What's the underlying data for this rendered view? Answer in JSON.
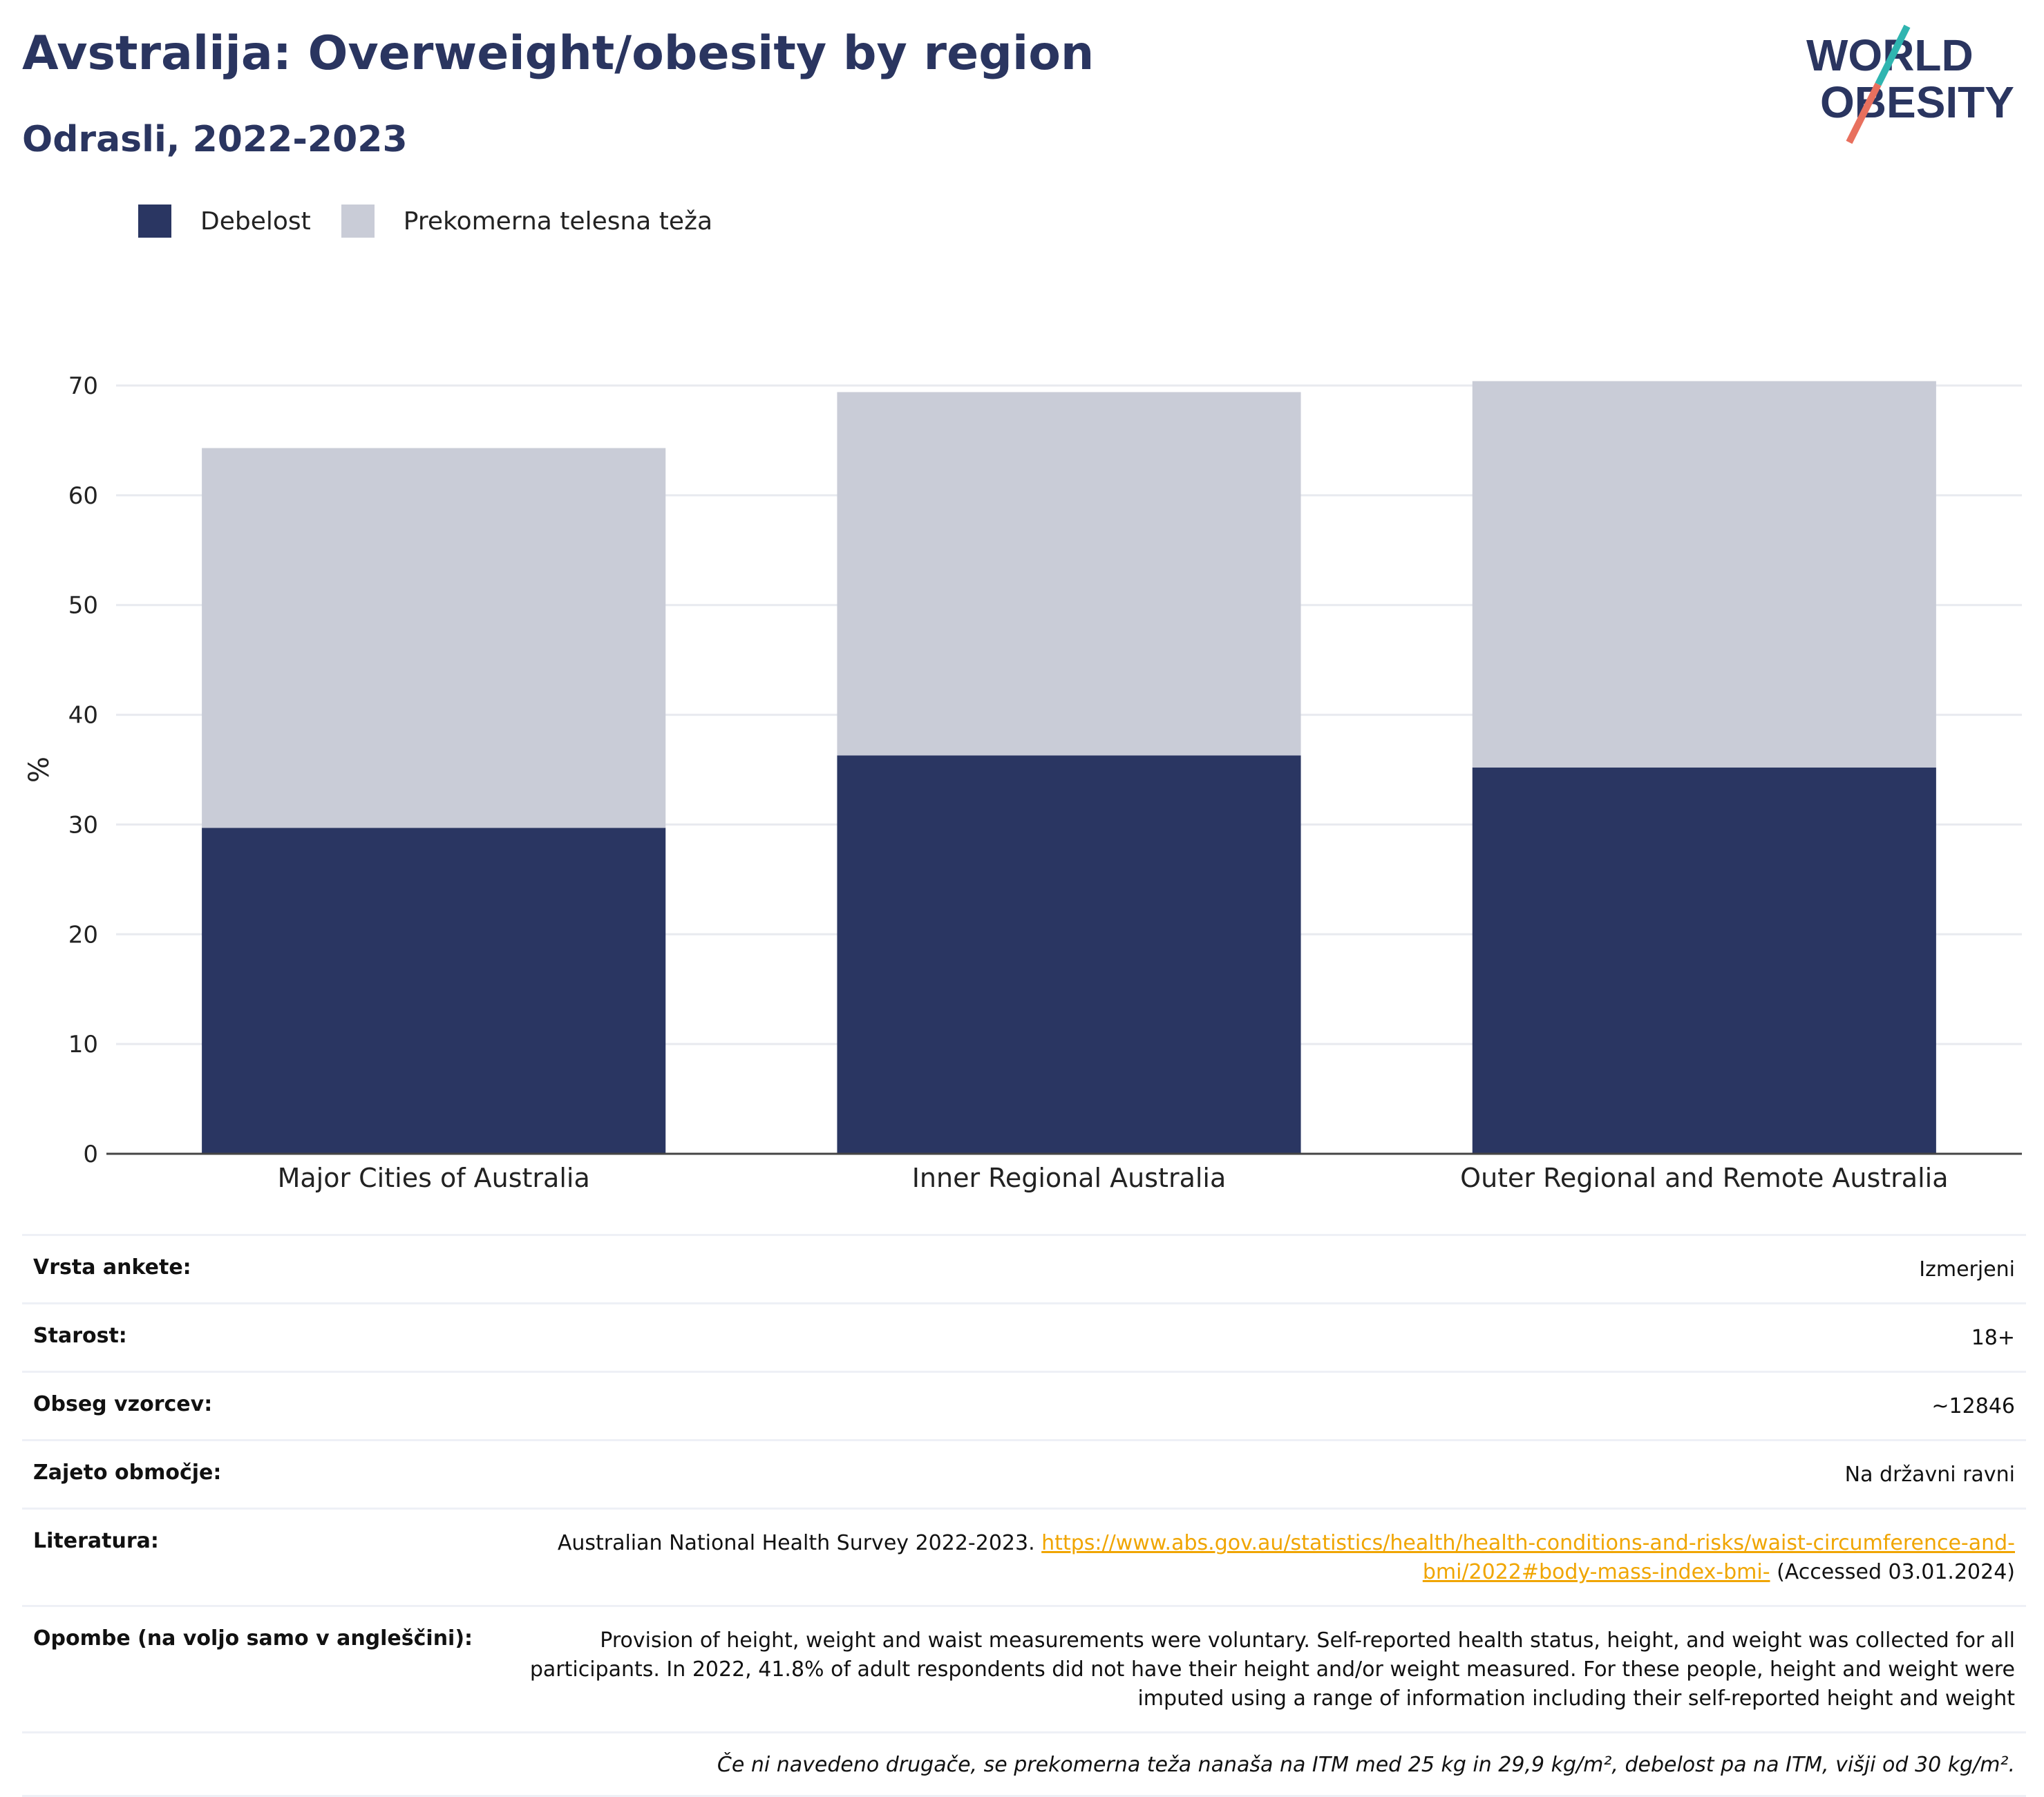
{
  "header": {
    "title": "Avstralija: Overweight/obesity by region",
    "subtitle": "Odrasli, 2022-2023"
  },
  "logo": {
    "line1": "WORLD",
    "line2": "OBESITY"
  },
  "colors": {
    "obesity": "#2a3662",
    "overweight": "#c9ccd7",
    "title": "#2a3560",
    "link": "#f0a500"
  },
  "legend": {
    "items": [
      {
        "label": "Debelost",
        "color": "#2a3662"
      },
      {
        "label": "Prekomerna telesna teža",
        "color": "#c9ccd7"
      }
    ],
    "placement": "top-left"
  },
  "chart_data": {
    "type": "bar",
    "stacked": true,
    "categories": [
      "Major Cities of Australia",
      "Inner Regional Australia",
      "Outer Regional and Remote Australia"
    ],
    "series": [
      {
        "name": "Debelost",
        "values": [
          29.7,
          36.3,
          35.2
        ]
      },
      {
        "name": "Prekomerna telesna teža",
        "values": [
          34.6,
          33.1,
          35.2
        ]
      }
    ],
    "ylabel": "%",
    "ylim": [
      0,
      70
    ],
    "yticks": [
      "0",
      "10",
      "20",
      "30",
      "40",
      "50",
      "60",
      "70"
    ],
    "grid": true
  },
  "meta": {
    "rows": [
      {
        "key": "Vrsta ankete:",
        "value": "Izmerjeni"
      },
      {
        "key": "Starost:",
        "value": "18+"
      },
      {
        "key": "Obseg vzorcev:",
        "value": "~12846"
      },
      {
        "key": "Zajeto območje:",
        "value": "Na državni ravni"
      }
    ],
    "literature": {
      "key": "Literatura:",
      "text_before": "Australian National Health Survey 2022-2023.",
      "link": "https://www.abs.gov.au/statistics/health/health-conditions-and-risks/waist-circumference-and-bmi/2022#body-mass-index-bmi-",
      "text_after": "(Accessed 03.01.2024)"
    },
    "notes": {
      "key": "Opombe (na voljo samo v angleščini):",
      "value": "Provision of height, weight and waist measurements were voluntary. Self-reported health status, height, and weight was collected for all participants. In 2022, 41.8% of adult respondents did not have their height and/or weight measured. For these people, height and weight were imputed using a range of information including their self-reported height and weight"
    },
    "footnote": "Če ni navedeno drugače, se prekomerna teža nanaša na ITM med 25 kg in 29,9 kg/m², debelost pa na ITM, višji od 30 kg/m²."
  }
}
